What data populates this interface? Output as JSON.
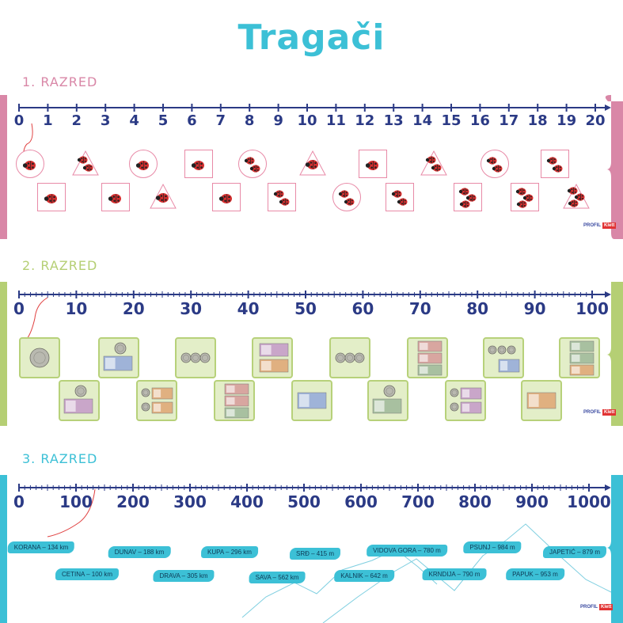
{
  "title": "Tragači",
  "logo": {
    "profil": "PROFIL",
    "klett": "Klett"
  },
  "grades": [
    {
      "label": "1. RAZRED",
      "ticks": [
        "0",
        "1",
        "2",
        "3",
        "4",
        "5",
        "6",
        "7",
        "8",
        "9",
        "10",
        "11",
        "12",
        "13",
        "14",
        "15",
        "16",
        "17",
        "18",
        "19",
        "20"
      ],
      "color": "#d987a7"
    },
    {
      "label": "2. RAZRED",
      "ticks": [
        "0",
        "10",
        "20",
        "30",
        "40",
        "50",
        "60",
        "70",
        "80",
        "90",
        "100"
      ],
      "color": "#b5cf74"
    },
    {
      "label": "3. RAZRED",
      "ticks": [
        "0",
        "100",
        "200",
        "300",
        "400",
        "500",
        "600",
        "700",
        "800",
        "900",
        "1000"
      ],
      "color": "#3cc0d6"
    }
  ],
  "ladybug_cards": [
    {
      "shape": "circle",
      "bugs": 1
    },
    {
      "shape": "triangle",
      "bugs": 2
    },
    {
      "shape": "circle",
      "bugs": 1
    },
    {
      "shape": "square",
      "bugs": 1
    },
    {
      "shape": "circle",
      "bugs": 2
    },
    {
      "shape": "triangle",
      "bugs": 1
    },
    {
      "shape": "square",
      "bugs": 1
    },
    {
      "shape": "triangle",
      "bugs": 2
    },
    {
      "shape": "circle",
      "bugs": 2
    },
    {
      "shape": "square",
      "bugs": 2
    },
    {
      "shape": "square",
      "bugs": 1
    },
    {
      "shape": "square",
      "bugs": 1
    },
    {
      "shape": "triangle",
      "bugs": 1
    },
    {
      "shape": "square",
      "bugs": 1
    },
    {
      "shape": "square",
      "bugs": 2
    },
    {
      "shape": "circle",
      "bugs": 2
    },
    {
      "shape": "square",
      "bugs": 2
    },
    {
      "shape": "square",
      "bugs": 3
    },
    {
      "shape": "square",
      "bugs": 3
    },
    {
      "shape": "triangle",
      "bugs": 3
    }
  ],
  "money_cards_row1": [
    "coin",
    "coin+note",
    "coins",
    "note+note",
    "coins",
    "notes",
    "coins+note",
    "notes"
  ],
  "money_cards_row2": [
    "coin+note",
    "coins+notes",
    "notes",
    "note",
    "coin+note",
    "coins+notes",
    "note"
  ],
  "mountains": [
    {
      "text": "KORANA – 134 km"
    },
    {
      "text": "CETINA – 100 km"
    },
    {
      "text": "DUNAV – 188 km"
    },
    {
      "text": "DRAVA – 305 km"
    },
    {
      "text": "KUPA – 296 km"
    },
    {
      "text": "SAVA – 562 km"
    },
    {
      "text": "SRĐ – 415 m"
    },
    {
      "text": "KALNIK – 642 m"
    },
    {
      "text": "VIDOVA GORA – 780 m"
    },
    {
      "text": "KRNDIJA – 790 m"
    },
    {
      "text": "PSUNJ – 984 m"
    },
    {
      "text": "PAPUK – 953 m"
    },
    {
      "text": "JAPETIĆ – 879 m"
    }
  ]
}
